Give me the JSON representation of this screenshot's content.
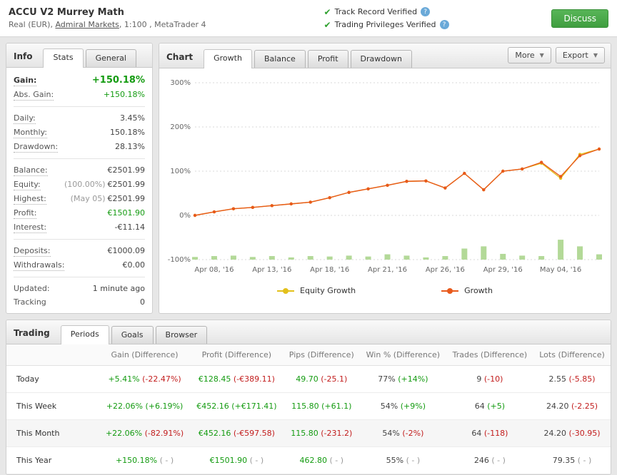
{
  "colors": {
    "positive": "#149b11",
    "negative": "#c21d1d",
    "neutral": "#999999",
    "verified_check": "#2ea02e",
    "discuss_button": "#3f9e3f",
    "growth_line": "#e8591b",
    "equity_line": "#e3c01b",
    "volume_bars": "#b3d998"
  },
  "header": {
    "title": "ACCU V2 Murrey Math",
    "subtitle_pre": "Real (EUR), ",
    "broker_link": "Admiral Markets",
    "subtitle_post": ", 1:100 , MetaTrader 4",
    "verified": [
      {
        "label": "Track Record Verified"
      },
      {
        "label": "Trading Privileges Verified"
      }
    ],
    "discuss_label": "Discuss"
  },
  "info_panel": {
    "title": "Info",
    "tabs": [
      "Stats",
      "General"
    ],
    "active_tab": "Stats",
    "groups": [
      [
        {
          "label": "Gain:",
          "value": "+150.18%",
          "style": "gain"
        },
        {
          "label": "Abs. Gain:",
          "value": "+150.18%",
          "style": "pos"
        }
      ],
      [
        {
          "label": "Daily:",
          "value": "3.45%"
        },
        {
          "label": "Monthly:",
          "value": "150.18%"
        },
        {
          "label": "Drawdown:",
          "value": "28.13%"
        }
      ],
      [
        {
          "label": "Balance:",
          "value": "€2501.99"
        },
        {
          "label": "Equity:",
          "prefix": "(100.00%)",
          "value": "€2501.99"
        },
        {
          "label": "Highest:",
          "prefix": "(May 05)",
          "value": "€2501.99"
        },
        {
          "label": "Profit:",
          "value": "€1501.90",
          "style": "pos"
        },
        {
          "label": "Interest:",
          "value": "-€11.14"
        }
      ],
      [
        {
          "label": "Deposits:",
          "value": "€1000.09"
        },
        {
          "label": "Withdrawals:",
          "value": "€0.00"
        }
      ],
      [
        {
          "label": "Updated:",
          "value": "1 minute ago",
          "plain": true
        },
        {
          "label": "Tracking",
          "value": "0",
          "plain": true
        }
      ]
    ]
  },
  "chart_panel": {
    "title": "Chart",
    "tabs": [
      "Growth",
      "Balance",
      "Profit",
      "Drawdown"
    ],
    "active_tab": "Growth",
    "more_label": "More",
    "export_label": "Export"
  },
  "chart_data": {
    "type": "line",
    "ylim": [
      -100,
      300
    ],
    "yticks": [
      -100,
      0,
      100,
      200,
      300
    ],
    "y_suffix": "%",
    "grid": "horizontal-dotted",
    "legend_position": "bottom",
    "x_labels": [
      "Apr 08, '16",
      "Apr 13, '16",
      "Apr 18, '16",
      "Apr 21, '16",
      "Apr 26, '16",
      "Apr 29, '16",
      "May 04, '16"
    ],
    "x_label_positions": [
      1,
      4,
      7,
      10,
      13,
      16,
      19
    ],
    "series": [
      {
        "name": "Equity Growth",
        "color": "#e3c01b",
        "values": [
          0,
          8,
          15,
          18,
          22,
          26,
          30,
          40,
          52,
          60,
          68,
          77,
          78,
          62,
          95,
          58,
          100,
          105,
          118,
          84,
          138,
          150
        ]
      },
      {
        "name": "Growth",
        "color": "#e8591b",
        "values": [
          0,
          8,
          15,
          18,
          22,
          26,
          30,
          40,
          52,
          60,
          68,
          77,
          78,
          62,
          95,
          58,
          100,
          105,
          120,
          88,
          135,
          150
        ]
      }
    ],
    "bars": {
      "name": "Volume",
      "color": "#b3d998",
      "baseline": -100,
      "values": [
        6,
        8,
        9,
        6,
        8,
        5,
        8,
        7,
        9,
        7,
        12,
        9,
        5,
        8,
        25,
        30,
        13,
        9,
        8,
        45,
        30,
        12
      ]
    }
  },
  "trading_panel": {
    "title": "Trading",
    "tabs": [
      "Periods",
      "Goals",
      "Browser"
    ],
    "active_tab": "Periods",
    "columns": [
      "",
      "Gain (Difference)",
      "Profit (Difference)",
      "Pips (Difference)",
      "Win % (Difference)",
      "Trades (Difference)",
      "Lots (Difference)"
    ],
    "rows": [
      {
        "label": "Today",
        "cells": [
          {
            "v": "+5.41%",
            "vc": "pos",
            "d": "(-22.47%)",
            "dc": "neg"
          },
          {
            "v": "€128.45",
            "vc": "pos",
            "d": "(-€389.11)",
            "dc": "neg"
          },
          {
            "v": "49.70",
            "vc": "pos",
            "d": "(-25.1)",
            "dc": "neg"
          },
          {
            "v": "77%",
            "vc": "plain",
            "d": "(+14%)",
            "dc": "pos"
          },
          {
            "v": "9",
            "vc": "plain",
            "d": "(-10)",
            "dc": "neg"
          },
          {
            "v": "2.55",
            "vc": "plain",
            "d": "(-5.85)",
            "dc": "neg"
          }
        ]
      },
      {
        "label": "This Week",
        "cells": [
          {
            "v": "+22.06%",
            "vc": "pos",
            "d": "(+6.19%)",
            "dc": "pos"
          },
          {
            "v": "€452.16",
            "vc": "pos",
            "d": "(+€171.41)",
            "dc": "pos"
          },
          {
            "v": "115.80",
            "vc": "pos",
            "d": "(+61.1)",
            "dc": "pos"
          },
          {
            "v": "54%",
            "vc": "plain",
            "d": "(+9%)",
            "dc": "pos"
          },
          {
            "v": "64",
            "vc": "plain",
            "d": "(+5)",
            "dc": "pos"
          },
          {
            "v": "24.20",
            "vc": "plain",
            "d": "(-2.25)",
            "dc": "neg"
          }
        ]
      },
      {
        "label": "This Month",
        "cells": [
          {
            "v": "+22.06%",
            "vc": "pos",
            "d": "(-82.91%)",
            "dc": "neg"
          },
          {
            "v": "€452.16",
            "vc": "pos",
            "d": "(-€597.58)",
            "dc": "neg"
          },
          {
            "v": "115.80",
            "vc": "pos",
            "d": "(-231.2)",
            "dc": "neg"
          },
          {
            "v": "54%",
            "vc": "plain",
            "d": "(-2%)",
            "dc": "neg"
          },
          {
            "v": "64",
            "vc": "plain",
            "d": "(-118)",
            "dc": "neg"
          },
          {
            "v": "24.20",
            "vc": "plain",
            "d": "(-30.95)",
            "dc": "neg"
          }
        ]
      },
      {
        "label": "This Year",
        "cells": [
          {
            "v": "+150.18%",
            "vc": "pos",
            "d": "( - )",
            "dc": "na"
          },
          {
            "v": "€1501.90",
            "vc": "pos",
            "d": "( - )",
            "dc": "na"
          },
          {
            "v": "462.80",
            "vc": "pos",
            "d": "( - )",
            "dc": "na"
          },
          {
            "v": "55%",
            "vc": "plain",
            "d": "( - )",
            "dc": "na"
          },
          {
            "v": "246",
            "vc": "plain",
            "d": "( - )",
            "dc": "na"
          },
          {
            "v": "79.35",
            "vc": "plain",
            "d": "( - )",
            "dc": "na"
          }
        ]
      }
    ]
  }
}
